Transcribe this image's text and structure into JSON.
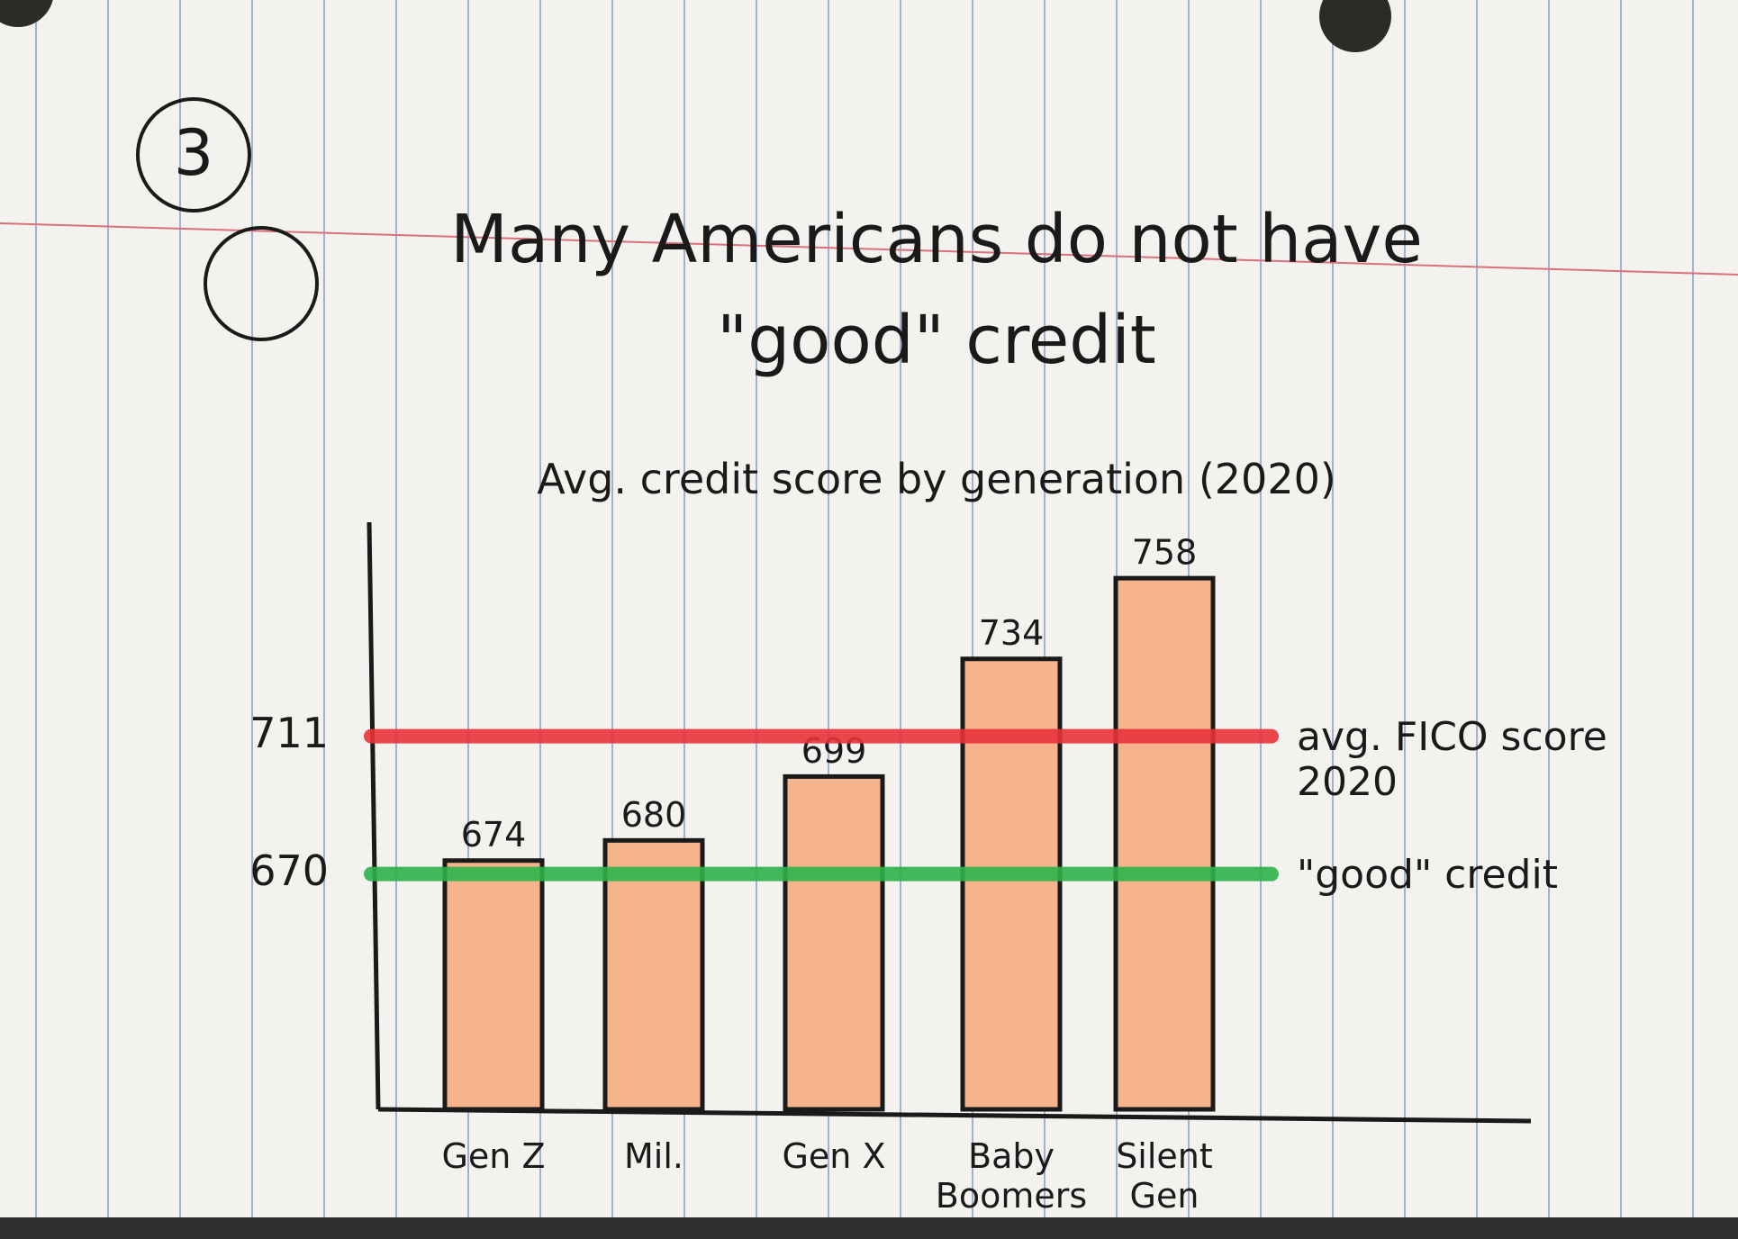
{
  "chart_data": {
    "type": "bar",
    "annotation": "3",
    "title": "Many Americans do not have \"good\" credit",
    "subtitle": "Avg. credit score by generation (2020)",
    "categories": [
      "Gen Z",
      "Mil.",
      "Gen X",
      "Baby Boomers",
      "Silent Gen"
    ],
    "values": [
      674,
      680,
      699,
      734,
      758
    ],
    "color": "#f6b48c",
    "ylim": [
      600,
      780
    ],
    "yticks": [
      670,
      711
    ],
    "grid": false,
    "reference_lines": [
      {
        "value": 711,
        "label": "avg. FICO score 2020",
        "color": "#e8333a"
      },
      {
        "value": 670,
        "label": "\"good\" credit",
        "color": "#2eb34a"
      }
    ]
  }
}
